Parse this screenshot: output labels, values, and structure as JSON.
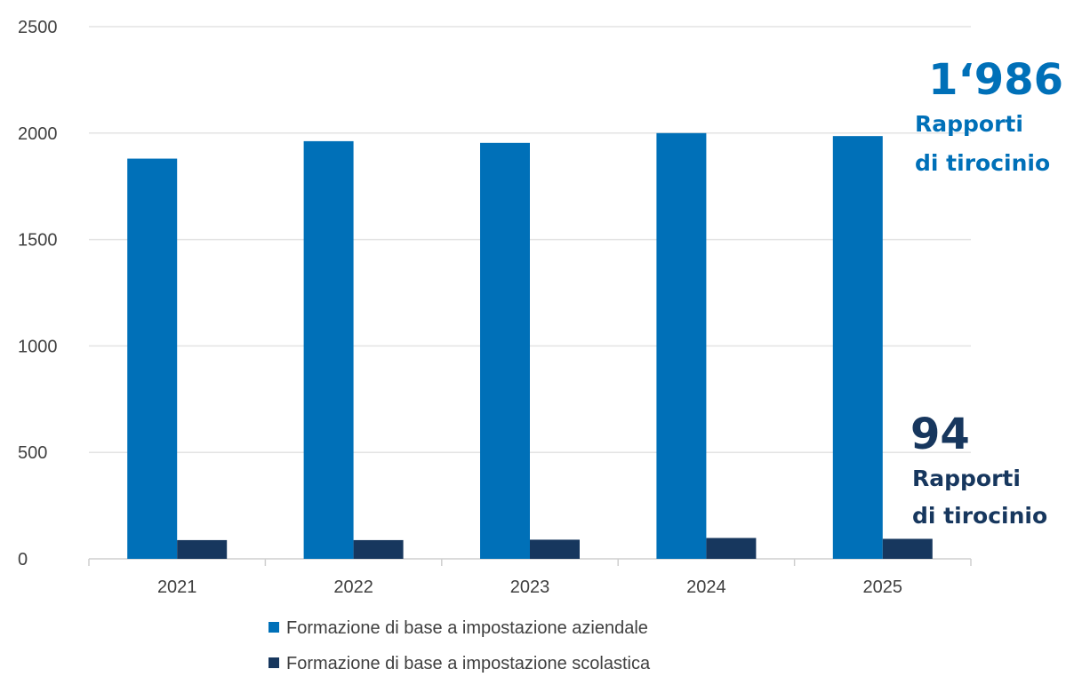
{
  "chart_data": {
    "type": "bar",
    "categories": [
      "2021",
      "2022",
      "2023",
      "2024",
      "2025"
    ],
    "series": [
      {
        "name": "Formazione di base a impostazione aziendale",
        "values": [
          1880,
          1962,
          1954,
          2000,
          1986
        ],
        "color": "#0070B8"
      },
      {
        "name": "Formazione di base a impostazione scolastica",
        "values": [
          88,
          88,
          90,
          98,
          94
        ],
        "color": "#17375E"
      }
    ],
    "ylim": [
      0,
      2500
    ],
    "yticks": [
      0,
      500,
      1000,
      1500,
      2000,
      2500
    ],
    "grid": true,
    "legend_position": "bottom",
    "annotations": [
      {
        "value": "1‘986",
        "label_line1": "Rapporti",
        "label_line2": "di tirocinio",
        "color": "#0070B8"
      },
      {
        "value": "94",
        "label_line1": "Rapporti",
        "label_line2": "di tirocinio",
        "color": "#17375E"
      }
    ]
  }
}
